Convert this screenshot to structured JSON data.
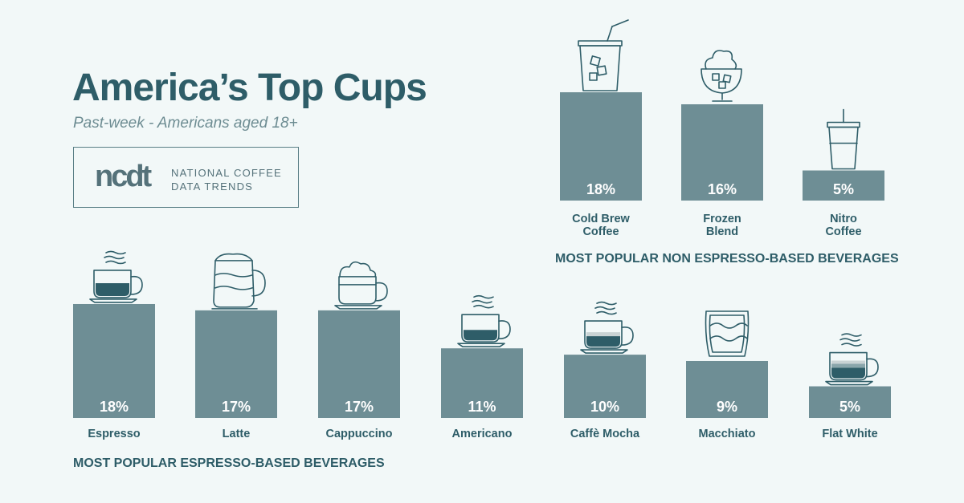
{
  "title": "America’s Top Cups",
  "subtitle": "Past-week - Americans aged 18+",
  "logo": {
    "mark": "ncdt",
    "line1": "NATIONAL COFFEE",
    "line2": "DATA TRENDS"
  },
  "colors": {
    "bar": "#6e8e95",
    "title": "#2e5d68",
    "icon_stroke": "#2e5d68",
    "icon_fill": "#2e5d68",
    "background": "#f2f8f8"
  },
  "chart_data": [
    {
      "type": "bar",
      "section_title": "MOST POPULAR NON ESPRESSO-BASED BEVERAGES",
      "unit": "%",
      "series": [
        {
          "name": "Cold Brew Coffee",
          "label_lines": [
            "Cold Brew",
            "Coffee"
          ],
          "value": 18,
          "icon": "iced-cup-icon"
        },
        {
          "name": "Frozen Blend",
          "label_lines": [
            "Frozen",
            "Blend"
          ],
          "value": 16,
          "icon": "frozen-blend-icon"
        },
        {
          "name": "Nitro Coffee",
          "label_lines": [
            "Nitro",
            "Coffee"
          ],
          "value": 5,
          "icon": "nitro-cup-icon"
        }
      ]
    },
    {
      "type": "bar",
      "section_title": "MOST POPULAR ESPRESSO-BASED BEVERAGES",
      "unit": "%",
      "series": [
        {
          "name": "Espresso",
          "label_lines": [
            "Espresso"
          ],
          "value": 18,
          "icon": "espresso-cup-icon"
        },
        {
          "name": "Latte",
          "label_lines": [
            "Latte"
          ],
          "value": 17,
          "icon": "latte-pitcher-icon"
        },
        {
          "name": "Cappuccino",
          "label_lines": [
            "Cappuccino"
          ],
          "value": 17,
          "icon": "cappuccino-cup-icon"
        },
        {
          "name": "Americano",
          "label_lines": [
            "Americano"
          ],
          "value": 11,
          "icon": "americano-cup-icon"
        },
        {
          "name": "Caffè Mocha",
          "label_lines": [
            "Caffè Mocha"
          ],
          "value": 10,
          "icon": "mocha-cup-icon"
        },
        {
          "name": "Macchiato",
          "label_lines": [
            "Macchiato"
          ],
          "value": 9,
          "icon": "macchiato-glass-icon"
        },
        {
          "name": "Flat White",
          "label_lines": [
            "Flat White"
          ],
          "value": 5,
          "icon": "flat-white-cup-icon"
        }
      ]
    }
  ]
}
